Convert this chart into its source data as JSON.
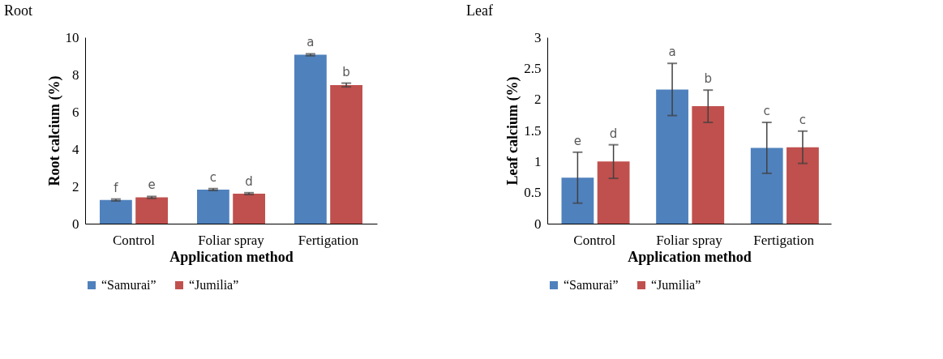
{
  "chart_data": [
    {
      "type": "bar",
      "title": "Root",
      "xlabel": "Application method",
      "ylabel": "Root calcium (%)",
      "categories": [
        "Control",
        "Foliar spray",
        "Fertigation"
      ],
      "ylim": [
        0,
        10
      ],
      "yticks": [
        0,
        2,
        4,
        6,
        8,
        10
      ],
      "grid": false,
      "legend": "bottom",
      "series": [
        {
          "name": "“Samurai”",
          "color": "#4f81bd",
          "values": [
            1.27,
            1.83,
            9.06
          ],
          "errors": [
            0.05,
            0.05,
            0.05
          ],
          "value_labels": [
            "f",
            "c",
            "a"
          ]
        },
        {
          "name": "“Jumilia”",
          "color": "#c0504d",
          "values": [
            1.41,
            1.61,
            7.44
          ],
          "errors": [
            0.05,
            0.05,
            0.1
          ],
          "value_labels": [
            "e",
            "d",
            "b"
          ]
        }
      ]
    },
    {
      "type": "bar",
      "title": "Leaf",
      "xlabel": "Application method",
      "ylabel": "Leaf calcium (%)",
      "categories": [
        "Control",
        "Foliar spray",
        "Fertigation"
      ],
      "ylim": [
        0,
        3
      ],
      "yticks": [
        0,
        0.5,
        1,
        1.5,
        2,
        2.5,
        3
      ],
      "grid": false,
      "legend": "bottom",
      "series": [
        {
          "name": "“Samurai”",
          "color": "#4f81bd",
          "values": [
            0.74,
            2.16,
            1.22
          ],
          "errors": [
            0.41,
            0.42,
            0.41
          ],
          "value_labels": [
            "e",
            "a",
            "c"
          ]
        },
        {
          "name": "“Jumilia”",
          "color": "#c0504d",
          "values": [
            1.0,
            1.89,
            1.23
          ],
          "errors": [
            0.27,
            0.26,
            0.26
          ],
          "value_labels": [
            "d",
            "b",
            "c"
          ]
        }
      ]
    }
  ]
}
